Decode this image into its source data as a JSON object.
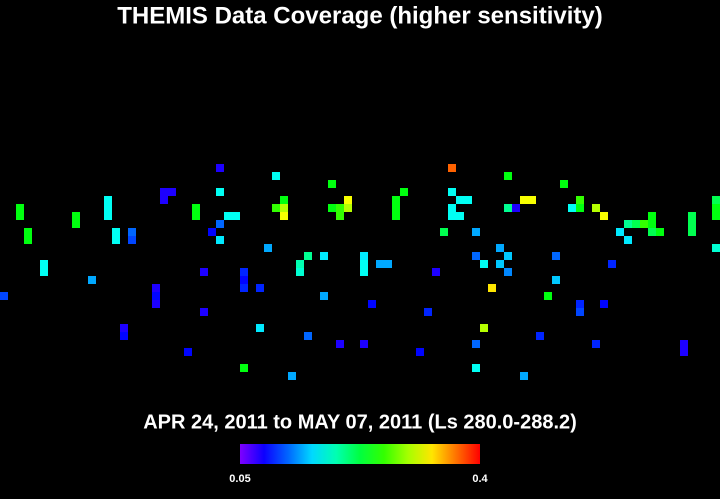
{
  "chart_data": {
    "type": "heatmap",
    "title": "THEMIS Data Coverage (higher sensitivity)",
    "subtitle": "APR 24, 2011 to MAY 07, 2011 (Ls 280.0-288.2)",
    "xlim": [
      0,
      90
    ],
    "ylim": [
      0,
      62
    ],
    "x": [
      27,
      34,
      56,
      63,
      20,
      21,
      20,
      27,
      41,
      50,
      56,
      70,
      2,
      2,
      9,
      9,
      13,
      13,
      13,
      24,
      24,
      28,
      29,
      35,
      34,
      35,
      35,
      41,
      42,
      42,
      43,
      43,
      49,
      49,
      49,
      56,
      57,
      58,
      56,
      57,
      63,
      64,
      65,
      66,
      71,
      72,
      72,
      74,
      75,
      78,
      79,
      80,
      81,
      81,
      86,
      86,
      86,
      89,
      89,
      89,
      3,
      3,
      14,
      14,
      16,
      16,
      27,
      26,
      27,
      55,
      59,
      77,
      78,
      81,
      82,
      89,
      5,
      5,
      11,
      25,
      30,
      30,
      30,
      33,
      38,
      37,
      37,
      40,
      45,
      45,
      45,
      47,
      48,
      54,
      59,
      60,
      62,
      63,
      62,
      63,
      69,
      69,
      76,
      0,
      19,
      19,
      19,
      32,
      40,
      61,
      68,
      25,
      46,
      53,
      72,
      72,
      75,
      15,
      15,
      32,
      38,
      60,
      67,
      23,
      42,
      45,
      52,
      59,
      74,
      85,
      85,
      30,
      36,
      59,
      65
    ],
    "y": [
      21,
      22,
      21,
      22,
      24,
      24,
      25,
      24,
      23,
      24,
      24,
      23,
      26,
      27,
      27,
      28,
      25,
      26,
      27,
      26,
      27,
      27,
      27,
      25,
      26,
      26,
      27,
      26,
      26,
      27,
      25,
      26,
      25,
      26,
      27,
      26,
      25,
      25,
      27,
      27,
      26,
      26,
      25,
      25,
      26,
      25,
      26,
      26,
      27,
      28,
      28,
      28,
      27,
      28,
      27,
      28,
      29,
      25,
      26,
      27,
      29,
      30,
      29,
      30,
      29,
      30,
      28,
      29,
      30,
      29,
      29,
      29,
      30,
      29,
      29,
      31,
      33,
      34,
      35,
      34,
      34,
      35,
      36,
      31,
      32,
      33,
      34,
      32,
      32,
      33,
      34,
      33,
      33,
      34,
      32,
      33,
      31,
      32,
      33,
      34,
      32,
      35,
      33,
      37,
      36,
      37,
      38,
      36,
      37,
      36,
      37,
      39,
      38,
      39,
      38,
      39,
      38,
      41,
      42,
      41,
      42,
      41,
      42,
      44,
      43,
      43,
      44,
      43,
      43,
      43,
      44,
      46,
      47,
      46,
      47
    ],
    "values": [
      0.08,
      0.17,
      0.37,
      0.24,
      0.08,
      0.08,
      0.08,
      0.17,
      0.24,
      0.24,
      0.17,
      0.24,
      0.24,
      0.24,
      0.24,
      0.24,
      0.17,
      0.17,
      0.17,
      0.24,
      0.24,
      0.17,
      0.17,
      0.24,
      0.26,
      0.3,
      0.32,
      0.24,
      0.26,
      0.26,
      0.32,
      0.3,
      0.24,
      0.24,
      0.24,
      0.17,
      0.17,
      0.17,
      0.17,
      0.17,
      0.2,
      0.08,
      0.32,
      0.32,
      0.17,
      0.26,
      0.24,
      0.3,
      0.32,
      0.2,
      0.22,
      0.26,
      0.24,
      0.24,
      0.22,
      0.22,
      0.22,
      0.22,
      0.24,
      0.24,
      0.24,
      0.24,
      0.17,
      0.17,
      0.12,
      0.11,
      0.12,
      0.09,
      0.16,
      0.22,
      0.14,
      0.16,
      0.16,
      0.22,
      0.24,
      0.18,
      0.17,
      0.17,
      0.14,
      0.08,
      0.1,
      0.09,
      0.1,
      0.14,
      0.2,
      0.19,
      0.18,
      0.16,
      0.16,
      0.17,
      0.17,
      0.14,
      0.14,
      0.08,
      0.12,
      0.17,
      0.14,
      0.15,
      0.15,
      0.13,
      0.12,
      0.15,
      0.1,
      0.11,
      0.08,
      0.09,
      0.08,
      0.1,
      0.14,
      0.33,
      0.24,
      0.08,
      0.09,
      0.1,
      0.1,
      0.11,
      0.09,
      0.08,
      0.09,
      0.16,
      0.12,
      0.3,
      0.1,
      0.09,
      0.08,
      0.08,
      0.09,
      0.12,
      0.1,
      0.08,
      0.08,
      0.24,
      0.14,
      0.17,
      0.14
    ],
    "colorbar": {
      "lim": [
        0.05,
        0.4
      ],
      "ticks": [
        0.05,
        0.4
      ]
    }
  }
}
